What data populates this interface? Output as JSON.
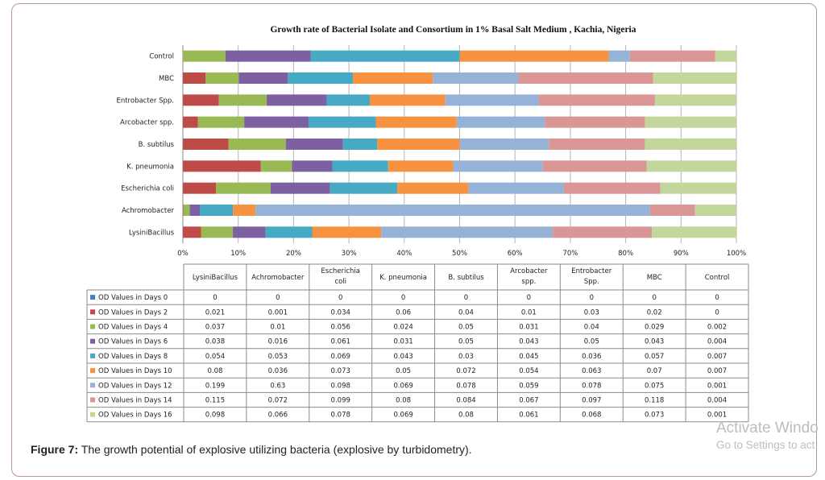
{
  "caption": {
    "label": "Figure 7:",
    "text": " The growth potential of explosive utilizing bacteria (explosive by turbidometry)."
  },
  "watermark": {
    "title": "Activate Windo",
    "subtitle": "Go to Settings to act"
  },
  "chart_data": {
    "type": "bar",
    "orientation": "horizontal",
    "stacked": "percent",
    "title": "Growth rate of Bacterial Isolate and Consortium  in 1%  Basal Salt Medium , Kachia, Nigeria",
    "categories": [
      "LysiniBacillus",
      "Achromobacter",
      "Escherichia coli",
      "K. pneumonia",
      "B. subtilus",
      "Arcobacter spp.",
      "Entrobacter Spp.",
      "MBC",
      "Control"
    ],
    "table_headers": [
      "LysiniBacillus",
      "Achromobacter",
      "Escherichia coli",
      "K. pneumonia",
      "B. subtilus",
      "Arcobacter spp.",
      "Entrobacter Spp.",
      "MBC",
      "Control"
    ],
    "x_ticks": [
      "0%",
      "10%",
      "20%",
      "30%",
      "40%",
      "50%",
      "60%",
      "70%",
      "80%",
      "90%",
      "100%"
    ],
    "xlim": [
      0,
      100
    ],
    "grid": true,
    "legend_position": "data-table-left",
    "series": [
      {
        "name": "OD Values in Days  0",
        "color": "#4a7ebb",
        "values": [
          0,
          0,
          0,
          0,
          0,
          0,
          0,
          0,
          0
        ],
        "labels": [
          "0",
          "0",
          "0",
          "0",
          "0",
          "0",
          "0",
          "0",
          "0"
        ]
      },
      {
        "name": "OD Values in Days  2",
        "color": "#be4b48",
        "values": [
          0.021,
          0.001,
          0.034,
          0.06,
          0.04,
          0.01,
          0.03,
          0.02,
          0
        ],
        "labels": [
          "0.021",
          "0.001",
          "0.034",
          "0.06",
          "0.04",
          "0.01",
          "0.03",
          "0.02",
          "0"
        ]
      },
      {
        "name": "OD Values in Days  4",
        "color": "#98b954",
        "values": [
          0.037,
          0.01,
          0.056,
          0.024,
          0.05,
          0.031,
          0.04,
          0.029,
          0.002
        ],
        "labels": [
          "0.037",
          "0.01",
          "0.056",
          "0.024",
          "0.05",
          "0.031",
          "0.04",
          "0.029",
          "0.002"
        ]
      },
      {
        "name": "OD Values in Days  6",
        "color": "#7d60a0",
        "values": [
          0.038,
          0.016,
          0.061,
          0.031,
          0.05,
          0.043,
          0.05,
          0.043,
          0.004
        ],
        "labels": [
          "0.038",
          "0.016",
          "0.061",
          "0.031",
          "0.05",
          "0.043",
          "0.05",
          "0.043",
          "0.004"
        ]
      },
      {
        "name": "OD Values in Days  8",
        "color": "#46aac5",
        "values": [
          0.054,
          0.053,
          0.069,
          0.043,
          0.03,
          0.045,
          0.036,
          0.057,
          0.007
        ],
        "labels": [
          "0.054",
          "0.053",
          "0.069",
          "0.043",
          "0.03",
          "0.045",
          "0.036",
          "0.057",
          "0.007"
        ]
      },
      {
        "name": "OD Values in Days  10",
        "color": "#f69240",
        "values": [
          0.08,
          0.036,
          0.073,
          0.05,
          0.072,
          0.054,
          0.063,
          0.07,
          0.007
        ],
        "labels": [
          "0.08",
          "0.036",
          "0.073",
          "0.05",
          "0.072",
          "0.054",
          "0.063",
          "0.07",
          "0.007"
        ]
      },
      {
        "name": "OD Values in Days  12",
        "color": "#95b3d7",
        "values": [
          0.199,
          0.63,
          0.098,
          0.069,
          0.078,
          0.059,
          0.078,
          0.075,
          0.001
        ],
        "labels": [
          "0.199",
          "0.63",
          "0.098",
          "0.069",
          "0.078",
          "0.059",
          "0.078",
          "0.075",
          "0.001"
        ]
      },
      {
        "name": "OD Values in Days  14",
        "color": "#d99694",
        "values": [
          0.115,
          0.072,
          0.099,
          0.08,
          0.084,
          0.067,
          0.097,
          0.118,
          0.004
        ],
        "labels": [
          "0.115",
          "0.072",
          "0.099",
          "0.08",
          "0.084",
          "0.067",
          "0.097",
          "0.118",
          "0.004"
        ]
      },
      {
        "name": "OD Values in Days  16",
        "color": "#c3d69b",
        "values": [
          0.098,
          0.066,
          0.078,
          0.069,
          0.08,
          0.061,
          0.068,
          0.073,
          0.001
        ],
        "labels": [
          "0.098",
          "0.066",
          "0.078",
          "0.069",
          "0.08",
          "0.061",
          "0.068",
          "0.073",
          "0.001"
        ]
      }
    ]
  }
}
